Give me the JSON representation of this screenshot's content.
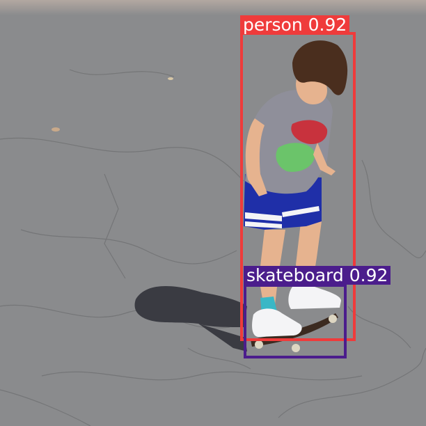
{
  "detections": [
    {
      "label": "person",
      "score": "0.92",
      "color": "#ef3b3b"
    },
    {
      "label": "skateboard",
      "score": "0.92",
      "color": "#4b1d8c"
    }
  ],
  "colors": {
    "asphalt": "#8a8b8d",
    "shadow": "#3a3b42",
    "shirt": "#8f8f9a",
    "shorts": "#1f2fa8",
    "hair": "#4a2e1e",
    "skin": "#e6b38f"
  }
}
